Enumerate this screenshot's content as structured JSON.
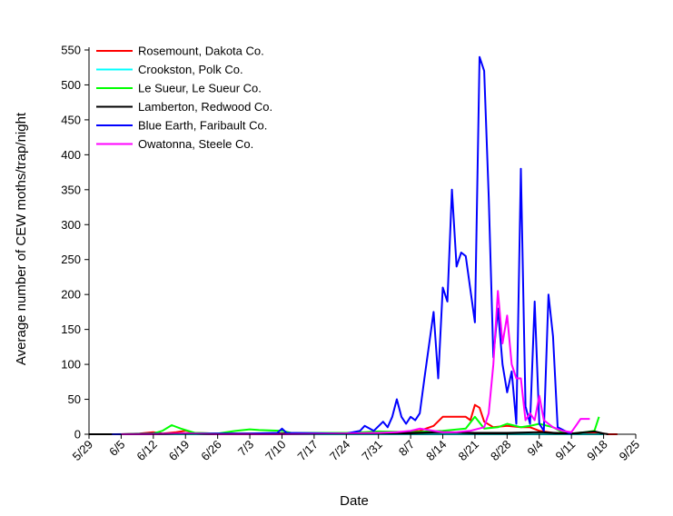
{
  "chart_data": {
    "type": "line",
    "xlabel": "Date",
    "ylabel": "Average number of CEW moths/trap/night",
    "ylim": [
      0,
      550
    ],
    "yticks": [
      0,
      50,
      100,
      150,
      200,
      250,
      300,
      350,
      400,
      450,
      500,
      550
    ],
    "xlim": [
      "5/29",
      "9/25"
    ],
    "xtick_labels": [
      "5/29",
      "6/5",
      "6/12",
      "6/19",
      "6/26",
      "7/3",
      "7/10",
      "7/17",
      "7/24",
      "7/31",
      "8/7",
      "8/14",
      "8/21",
      "8/28",
      "9/4",
      "9/11",
      "9/18",
      "9/25"
    ],
    "legend_position": "top-left",
    "grid": false,
    "series": [
      {
        "name": "Rosemount, Dakota Co.",
        "color": "#ff0000",
        "points": [
          [
            "5/29",
            0
          ],
          [
            "6/5",
            0
          ],
          [
            "6/9",
            1
          ],
          [
            "6/12",
            3
          ],
          [
            "6/14",
            1
          ],
          [
            "6/17",
            3
          ],
          [
            "6/19",
            5
          ],
          [
            "6/21",
            2
          ],
          [
            "6/26",
            1
          ],
          [
            "7/10",
            1
          ],
          [
            "7/24",
            1
          ],
          [
            "7/31",
            2
          ],
          [
            "8/5",
            3
          ],
          [
            "8/9",
            5
          ],
          [
            "8/12",
            12
          ],
          [
            "8/14",
            25
          ],
          [
            "8/17",
            25
          ],
          [
            "8/19",
            25
          ],
          [
            "8/20",
            20
          ],
          [
            "8/21",
            42
          ],
          [
            "8/22",
            38
          ],
          [
            "8/23",
            18
          ],
          [
            "8/25",
            10
          ],
          [
            "8/28",
            12
          ],
          [
            "8/31",
            10
          ],
          [
            "9/2",
            10
          ],
          [
            "9/4",
            5
          ],
          [
            "9/7",
            2
          ],
          [
            "9/11",
            1
          ],
          [
            "9/14",
            1
          ],
          [
            "9/17",
            2
          ],
          [
            "9/19",
            0
          ],
          [
            "9/21",
            0
          ]
        ]
      },
      {
        "name": "Crookston, Polk Co.",
        "color": "#00ffff",
        "points": [
          [
            "5/29",
            0
          ],
          [
            "6/5",
            0
          ],
          [
            "6/19",
            0
          ],
          [
            "7/3",
            0
          ],
          [
            "7/17",
            0
          ],
          [
            "7/31",
            0
          ],
          [
            "8/14",
            0
          ],
          [
            "8/28",
            0
          ],
          [
            "9/11",
            0
          ],
          [
            "9/18",
            0
          ]
        ]
      },
      {
        "name": "Le Sueur, Le Sueur Co.",
        "color": "#00ff00",
        "points": [
          [
            "5/29",
            0
          ],
          [
            "6/5",
            0
          ],
          [
            "6/12",
            1
          ],
          [
            "6/14",
            5
          ],
          [
            "6/16",
            13
          ],
          [
            "6/18",
            8
          ],
          [
            "6/21",
            2
          ],
          [
            "6/26",
            1
          ],
          [
            "6/30",
            5
          ],
          [
            "7/3",
            7
          ],
          [
            "7/5",
            6
          ],
          [
            "7/10",
            5
          ],
          [
            "7/12",
            2
          ],
          [
            "7/17",
            2
          ],
          [
            "7/24",
            2
          ],
          [
            "7/28",
            3
          ],
          [
            "7/31",
            4
          ],
          [
            "8/7",
            3
          ],
          [
            "8/14",
            5
          ],
          [
            "8/19",
            8
          ],
          [
            "8/21",
            25
          ],
          [
            "8/23",
            8
          ],
          [
            "8/26",
            10
          ],
          [
            "8/28",
            15
          ],
          [
            "8/31",
            10
          ],
          [
            "9/2",
            12
          ],
          [
            "9/4",
            15
          ],
          [
            "9/7",
            10
          ],
          [
            "9/9",
            3
          ],
          [
            "9/11",
            1
          ],
          [
            "9/14",
            3
          ],
          [
            "9/16",
            5
          ],
          [
            "9/17",
            25
          ]
        ]
      },
      {
        "name": "Lamberton, Redwood Co.",
        "color": "#000000",
        "points": [
          [
            "5/29",
            0
          ],
          [
            "6/12",
            0
          ],
          [
            "6/19",
            1
          ],
          [
            "6/26",
            0
          ],
          [
            "7/10",
            1
          ],
          [
            "7/24",
            1
          ],
          [
            "7/31",
            2
          ],
          [
            "8/7",
            2
          ],
          [
            "8/14",
            3
          ],
          [
            "8/21",
            2
          ],
          [
            "8/28",
            2
          ],
          [
            "9/4",
            3
          ],
          [
            "9/11",
            1
          ],
          [
            "9/16",
            4
          ],
          [
            "9/18",
            1
          ],
          [
            "9/19",
            0
          ]
        ]
      },
      {
        "name": "Blue Earth, Faribault Co.",
        "color": "#0000ff",
        "points": [
          [
            "6/3",
            0
          ],
          [
            "6/19",
            1
          ],
          [
            "7/3",
            1
          ],
          [
            "7/9",
            2
          ],
          [
            "7/10",
            8
          ],
          [
            "7/11",
            2
          ],
          [
            "7/24",
            1
          ],
          [
            "7/27",
            5
          ],
          [
            "7/28",
            12
          ],
          [
            "7/30",
            5
          ],
          [
            "8/1",
            18
          ],
          [
            "8/2",
            10
          ],
          [
            "8/3",
            25
          ],
          [
            "8/4",
            50
          ],
          [
            "8/5",
            25
          ],
          [
            "8/6",
            15
          ],
          [
            "8/7",
            25
          ],
          [
            "8/8",
            20
          ],
          [
            "8/9",
            30
          ],
          [
            "8/10",
            80
          ],
          [
            "8/12",
            175
          ],
          [
            "8/13",
            80
          ],
          [
            "8/14",
            210
          ],
          [
            "8/15",
            190
          ],
          [
            "8/16",
            350
          ],
          [
            "8/17",
            240
          ],
          [
            "8/18",
            260
          ],
          [
            "8/19",
            255
          ],
          [
            "8/21",
            160
          ],
          [
            "8/22",
            540
          ],
          [
            "8/23",
            520
          ],
          [
            "8/24",
            340
          ],
          [
            "8/25",
            110
          ],
          [
            "8/26",
            180
          ],
          [
            "8/27",
            100
          ],
          [
            "8/28",
            60
          ],
          [
            "8/29",
            90
          ],
          [
            "8/30",
            15
          ],
          [
            "8/31",
            380
          ],
          [
            "9/1",
            40
          ],
          [
            "9/2",
            15
          ],
          [
            "9/3",
            190
          ],
          [
            "9/4",
            15
          ],
          [
            "9/5",
            5
          ],
          [
            "9/6",
            200
          ],
          [
            "9/7",
            140
          ],
          [
            "9/8",
            10
          ],
          [
            "9/11",
            0
          ]
        ]
      },
      {
        "name": "Owatonna, Steele Co.",
        "color": "#ff00ff",
        "points": [
          [
            "6/5",
            0
          ],
          [
            "6/12",
            0
          ],
          [
            "6/19",
            1
          ],
          [
            "6/26",
            0
          ],
          [
            "7/10",
            0
          ],
          [
            "7/24",
            1
          ],
          [
            "7/31",
            2
          ],
          [
            "8/4",
            3
          ],
          [
            "8/7",
            5
          ],
          [
            "8/9",
            8
          ],
          [
            "8/12",
            5
          ],
          [
            "8/14",
            3
          ],
          [
            "8/17",
            3
          ],
          [
            "8/20",
            5
          ],
          [
            "8/23",
            10
          ],
          [
            "8/24",
            30
          ],
          [
            "8/25",
            100
          ],
          [
            "8/26",
            205
          ],
          [
            "8/27",
            130
          ],
          [
            "8/28",
            170
          ],
          [
            "8/29",
            100
          ],
          [
            "8/30",
            80
          ],
          [
            "8/31",
            80
          ],
          [
            "9/1",
            20
          ],
          [
            "9/2",
            30
          ],
          [
            "9/3",
            20
          ],
          [
            "9/4",
            55
          ],
          [
            "9/5",
            20
          ],
          [
            "9/6",
            15
          ],
          [
            "9/7",
            10
          ],
          [
            "9/9",
            5
          ],
          [
            "9/11",
            3
          ],
          [
            "9/13",
            22
          ],
          [
            "9/15",
            22
          ]
        ]
      }
    ]
  }
}
